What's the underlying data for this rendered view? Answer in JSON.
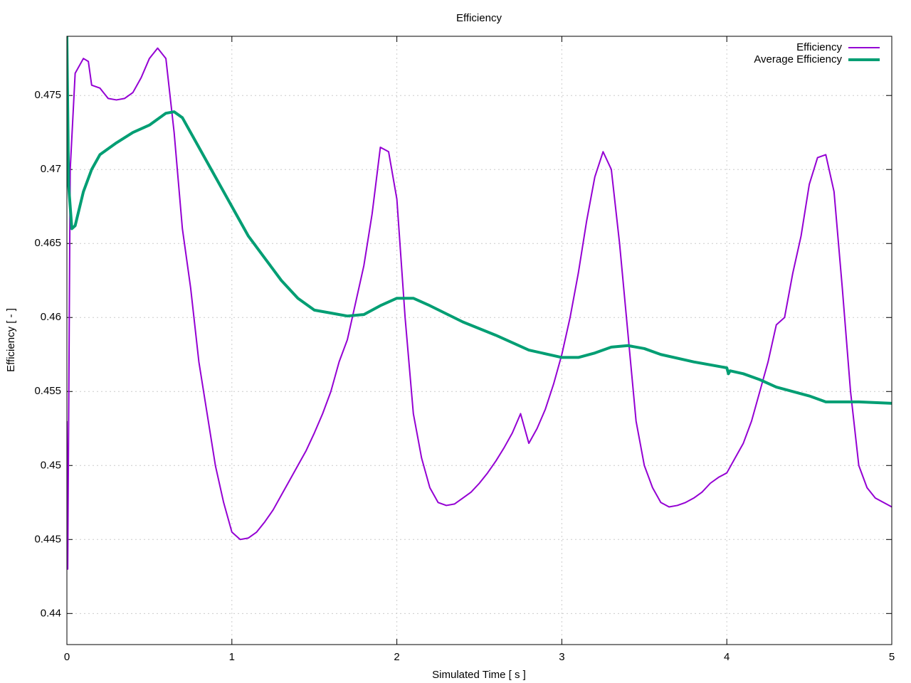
{
  "chart_data": {
    "type": "line",
    "title": "Efficiency",
    "x_label": "Simulated Time [ s ]",
    "y_label": "Efficiency [ - ]",
    "xlim": [
      0,
      5
    ],
    "xticks": [
      0,
      1,
      2,
      3,
      4,
      5
    ],
    "ylim": [
      0.4379,
      0.479
    ],
    "yticks": [
      0.44,
      0.445,
      0.45,
      0.455,
      0.46,
      0.465,
      0.47,
      0.475
    ],
    "grid": true,
    "legend": "top-right",
    "series": [
      {
        "name": "Efficiency",
        "color": "#9400d3",
        "width": 2,
        "x": [
          0,
          0.005,
          0.02,
          0.05,
          0.1,
          0.13,
          0.15,
          0.2,
          0.25,
          0.3,
          0.35,
          0.4,
          0.45,
          0.5,
          0.55,
          0.6,
          0.65,
          0.7,
          0.75,
          0.8,
          0.85,
          0.9,
          0.95,
          1.0,
          1.05,
          1.1,
          1.15,
          1.2,
          1.25,
          1.3,
          1.35,
          1.4,
          1.45,
          1.5,
          1.55,
          1.6,
          1.65,
          1.7,
          1.75,
          1.8,
          1.85,
          1.9,
          1.95,
          2.0,
          2.05,
          2.1,
          2.15,
          2.2,
          2.25,
          2.3,
          2.35,
          2.4,
          2.45,
          2.5,
          2.55,
          2.6,
          2.65,
          2.7,
          2.75,
          2.8,
          2.85,
          2.9,
          2.95,
          3.0,
          3.05,
          3.1,
          3.15,
          3.2,
          3.25,
          3.3,
          3.35,
          3.4,
          3.45,
          3.5,
          3.55,
          3.6,
          3.65,
          3.7,
          3.75,
          3.8,
          3.85,
          3.9,
          3.95,
          4.0,
          4.05,
          4.1,
          4.15,
          4.2,
          4.25,
          4.3,
          4.35,
          4.4,
          4.45,
          4.5,
          4.55,
          4.6,
          4.65,
          4.7,
          4.75,
          4.8,
          4.85,
          4.9,
          4.95,
          5.0
        ],
        "values": [
          0.453,
          0.443,
          0.47,
          0.4765,
          0.4775,
          0.4773,
          0.4757,
          0.4755,
          0.4748,
          0.4747,
          0.4748,
          0.4752,
          0.4762,
          0.4775,
          0.4782,
          0.4775,
          0.4725,
          0.466,
          0.462,
          0.457,
          0.4535,
          0.45,
          0.4475,
          0.4455,
          0.445,
          0.4451,
          0.4455,
          0.4462,
          0.447,
          0.448,
          0.449,
          0.45,
          0.451,
          0.4522,
          0.4535,
          0.455,
          0.457,
          0.4585,
          0.461,
          0.4635,
          0.467,
          0.4715,
          0.4712,
          0.468,
          0.46,
          0.4535,
          0.4505,
          0.4485,
          0.4475,
          0.4473,
          0.4474,
          0.4478,
          0.4482,
          0.4488,
          0.4495,
          0.4503,
          0.4512,
          0.4522,
          0.4535,
          0.4515,
          0.4525,
          0.4538,
          0.4555,
          0.4575,
          0.46,
          0.463,
          0.4665,
          0.4695,
          0.4712,
          0.47,
          0.465,
          0.459,
          0.453,
          0.45,
          0.4485,
          0.4475,
          0.4472,
          0.4473,
          0.4475,
          0.4478,
          0.4482,
          0.4488,
          0.4492,
          0.4495,
          0.4505,
          0.4515,
          0.453,
          0.455,
          0.457,
          0.4595,
          0.46,
          0.463,
          0.4655,
          0.469,
          0.4708,
          0.471,
          0.4685,
          0.462,
          0.455,
          0.45,
          0.4485,
          0.4478,
          0.4475,
          0.4472
        ]
      },
      {
        "name": "Average Efficiency",
        "color": "#009e73",
        "width": 4,
        "x": [
          0,
          0.01,
          0.03,
          0.05,
          0.1,
          0.15,
          0.2,
          0.3,
          0.4,
          0.5,
          0.6,
          0.65,
          0.7,
          0.8,
          0.9,
          1.0,
          1.1,
          1.2,
          1.3,
          1.4,
          1.5,
          1.6,
          1.7,
          1.8,
          1.9,
          2.0,
          2.1,
          2.2,
          2.4,
          2.6,
          2.8,
          3.0,
          3.1,
          3.2,
          3.3,
          3.4,
          3.5,
          3.6,
          3.8,
          4.0,
          4.01,
          4.02,
          4.1,
          4.2,
          4.3,
          4.4,
          4.5,
          4.6,
          4.7,
          4.8,
          5.0
        ],
        "values": [
          0.479,
          0.469,
          0.466,
          0.4662,
          0.4685,
          0.47,
          0.471,
          0.4718,
          0.4725,
          0.473,
          0.4738,
          0.4739,
          0.4735,
          0.4715,
          0.4695,
          0.4675,
          0.4655,
          0.464,
          0.4625,
          0.4613,
          0.4605,
          0.4603,
          0.4601,
          0.4602,
          0.4608,
          0.4613,
          0.4613,
          0.4608,
          0.4597,
          0.4588,
          0.4578,
          0.4573,
          0.4573,
          0.4576,
          0.458,
          0.4581,
          0.4579,
          0.4575,
          0.457,
          0.4566,
          0.4562,
          0.4564,
          0.4562,
          0.4558,
          0.4553,
          0.455,
          0.4547,
          0.4543,
          0.4543,
          0.4543,
          0.4542
        ]
      }
    ]
  }
}
